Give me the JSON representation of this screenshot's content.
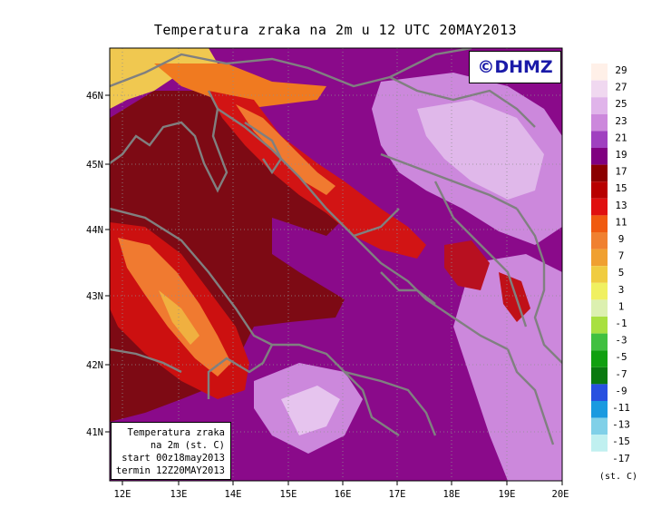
{
  "title": "Temperatura zraka na 2m u 12 UTC 20MAY2013",
  "logo_text": "©DHMZ",
  "info_box": {
    "line1": "Temperatura zraka",
    "line2": "na 2m (st. C)",
    "line3": "start 00z18may2013",
    "line4": "termin 12Z20MAY2013"
  },
  "axes": {
    "lon_labels": [
      "12E",
      "13E",
      "14E",
      "15E",
      "16E",
      "17E",
      "18E",
      "19E",
      "20E"
    ],
    "lat_labels": [
      "46N",
      "45N",
      "44N",
      "43N",
      "42N",
      "41N"
    ]
  },
  "legend": {
    "unit": "(st. C)",
    "labels": [
      "29",
      "27",
      "25",
      "23",
      "21",
      "19",
      "17",
      "15",
      "13",
      "11",
      "9",
      "7",
      "5",
      "3",
      "1",
      "-1",
      "-3",
      "-5",
      "-7",
      "-9",
      "-11",
      "-13",
      "-15",
      "-17"
    ],
    "colors": [
      "#fff0e8",
      "#f0d8f0",
      "#e0b4ea",
      "#cc88dc",
      "#a040c0",
      "#800080",
      "#8b0000",
      "#b80000",
      "#e01010",
      "#f05a10",
      "#f08030",
      "#f0a030",
      "#f0cc40",
      "#f0f060",
      "#dcf0b0",
      "#a8e040",
      "#40c040",
      "#10a010",
      "#0a7a10",
      "#2850e0",
      "#1a9ae0",
      "#80d0e8",
      "#c0f0f0",
      "#ffffff"
    ]
  }
}
